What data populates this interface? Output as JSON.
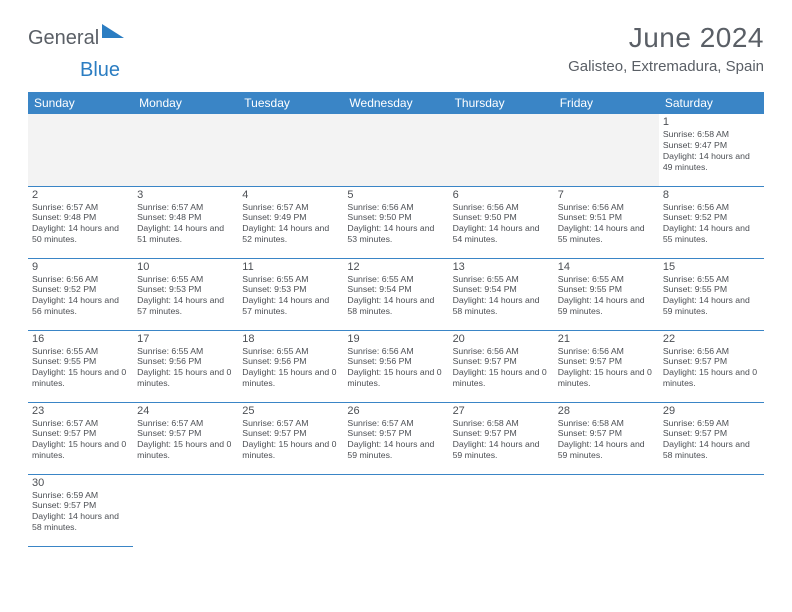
{
  "brand": {
    "text1": "General",
    "text2": "Blue"
  },
  "title": "June 2024",
  "location": "Galisteo, Extremadura, Spain",
  "colors": {
    "header_bg": "#3a85c6",
    "header_fg": "#ffffff",
    "rule": "#3a85c6",
    "text": "#4c4f54",
    "empty_bg": "#f3f3f3",
    "brand_gray": "#5a5f66",
    "brand_blue": "#2b7dc2"
  },
  "weekdays": [
    "Sunday",
    "Monday",
    "Tuesday",
    "Wednesday",
    "Thursday",
    "Friday",
    "Saturday"
  ],
  "weeks": [
    [
      null,
      null,
      null,
      null,
      null,
      null,
      {
        "n": "1",
        "sr": "6:58 AM",
        "ss": "9:47 PM",
        "dl": "14 hours and 49 minutes."
      }
    ],
    [
      {
        "n": "2",
        "sr": "6:57 AM",
        "ss": "9:48 PM",
        "dl": "14 hours and 50 minutes."
      },
      {
        "n": "3",
        "sr": "6:57 AM",
        "ss": "9:48 PM",
        "dl": "14 hours and 51 minutes."
      },
      {
        "n": "4",
        "sr": "6:57 AM",
        "ss": "9:49 PM",
        "dl": "14 hours and 52 minutes."
      },
      {
        "n": "5",
        "sr": "6:56 AM",
        "ss": "9:50 PM",
        "dl": "14 hours and 53 minutes."
      },
      {
        "n": "6",
        "sr": "6:56 AM",
        "ss": "9:50 PM",
        "dl": "14 hours and 54 minutes."
      },
      {
        "n": "7",
        "sr": "6:56 AM",
        "ss": "9:51 PM",
        "dl": "14 hours and 55 minutes."
      },
      {
        "n": "8",
        "sr": "6:56 AM",
        "ss": "9:52 PM",
        "dl": "14 hours and 55 minutes."
      }
    ],
    [
      {
        "n": "9",
        "sr": "6:56 AM",
        "ss": "9:52 PM",
        "dl": "14 hours and 56 minutes."
      },
      {
        "n": "10",
        "sr": "6:55 AM",
        "ss": "9:53 PM",
        "dl": "14 hours and 57 minutes."
      },
      {
        "n": "11",
        "sr": "6:55 AM",
        "ss": "9:53 PM",
        "dl": "14 hours and 57 minutes."
      },
      {
        "n": "12",
        "sr": "6:55 AM",
        "ss": "9:54 PM",
        "dl": "14 hours and 58 minutes."
      },
      {
        "n": "13",
        "sr": "6:55 AM",
        "ss": "9:54 PM",
        "dl": "14 hours and 58 minutes."
      },
      {
        "n": "14",
        "sr": "6:55 AM",
        "ss": "9:55 PM",
        "dl": "14 hours and 59 minutes."
      },
      {
        "n": "15",
        "sr": "6:55 AM",
        "ss": "9:55 PM",
        "dl": "14 hours and 59 minutes."
      }
    ],
    [
      {
        "n": "16",
        "sr": "6:55 AM",
        "ss": "9:55 PM",
        "dl": "15 hours and 0 minutes."
      },
      {
        "n": "17",
        "sr": "6:55 AM",
        "ss": "9:56 PM",
        "dl": "15 hours and 0 minutes."
      },
      {
        "n": "18",
        "sr": "6:55 AM",
        "ss": "9:56 PM",
        "dl": "15 hours and 0 minutes."
      },
      {
        "n": "19",
        "sr": "6:56 AM",
        "ss": "9:56 PM",
        "dl": "15 hours and 0 minutes."
      },
      {
        "n": "20",
        "sr": "6:56 AM",
        "ss": "9:57 PM",
        "dl": "15 hours and 0 minutes."
      },
      {
        "n": "21",
        "sr": "6:56 AM",
        "ss": "9:57 PM",
        "dl": "15 hours and 0 minutes."
      },
      {
        "n": "22",
        "sr": "6:56 AM",
        "ss": "9:57 PM",
        "dl": "15 hours and 0 minutes."
      }
    ],
    [
      {
        "n": "23",
        "sr": "6:57 AM",
        "ss": "9:57 PM",
        "dl": "15 hours and 0 minutes."
      },
      {
        "n": "24",
        "sr": "6:57 AM",
        "ss": "9:57 PM",
        "dl": "15 hours and 0 minutes."
      },
      {
        "n": "25",
        "sr": "6:57 AM",
        "ss": "9:57 PM",
        "dl": "15 hours and 0 minutes."
      },
      {
        "n": "26",
        "sr": "6:57 AM",
        "ss": "9:57 PM",
        "dl": "14 hours and 59 minutes."
      },
      {
        "n": "27",
        "sr": "6:58 AM",
        "ss": "9:57 PM",
        "dl": "14 hours and 59 minutes."
      },
      {
        "n": "28",
        "sr": "6:58 AM",
        "ss": "9:57 PM",
        "dl": "14 hours and 59 minutes."
      },
      {
        "n": "29",
        "sr": "6:59 AM",
        "ss": "9:57 PM",
        "dl": "14 hours and 58 minutes."
      }
    ],
    [
      {
        "n": "30",
        "sr": "6:59 AM",
        "ss": "9:57 PM",
        "dl": "14 hours and 58 minutes."
      },
      null,
      null,
      null,
      null,
      null,
      null
    ]
  ],
  "labels": {
    "sunrise": "Sunrise:",
    "sunset": "Sunset:",
    "daylight": "Daylight:"
  }
}
